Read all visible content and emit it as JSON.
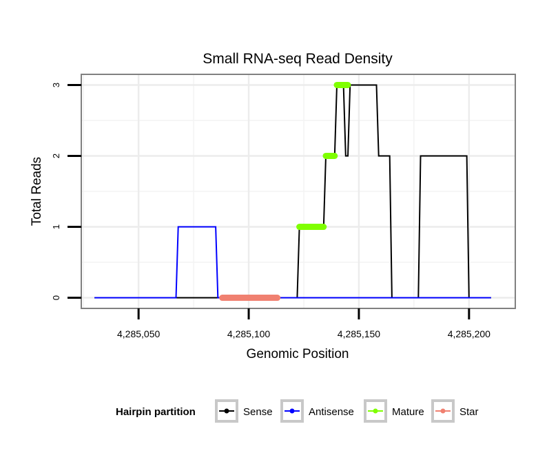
{
  "chart_data": {
    "type": "line",
    "title": "Small RNA-seq Read Density",
    "xlabel": "Genomic Position",
    "ylabel": "Total Reads",
    "xlim": [
      4285024,
      4285221
    ],
    "ylim": [
      -0.15,
      3.15
    ],
    "x_ticks": [
      4285050,
      4285100,
      4285150,
      4285200
    ],
    "x_tick_labels": [
      "4,285,050",
      "4,285,100",
      "4,285,150",
      "4,285,200"
    ],
    "y_ticks": [
      0,
      1,
      2,
      3
    ],
    "y_tick_labels": [
      "0",
      "1",
      "2",
      "3"
    ],
    "grid": true,
    "legend": {
      "title": "Hairpin partition",
      "position": "bottom",
      "entries": [
        "Sense",
        "Antisense",
        "Mature",
        "Star"
      ]
    },
    "series": [
      {
        "name": "Sense",
        "color": "#000000",
        "style": "line",
        "x": [
          4285030,
          4285122,
          4285123,
          4285134,
          4285135,
          4285139,
          4285140,
          4285143,
          4285144,
          4285145,
          4285146,
          4285158,
          4285159,
          4285164,
          4285165,
          4285177,
          4285178,
          4285199,
          4285200,
          4285210
        ],
        "y": [
          0,
          0,
          1,
          1,
          2,
          2,
          3,
          3,
          2,
          2,
          3,
          3,
          2,
          2,
          0,
          0,
          2,
          2,
          0,
          0
        ]
      },
      {
        "name": "Antisense",
        "color": "#0000ff",
        "style": "line",
        "x": [
          4285030,
          4285067,
          4285068,
          4285085,
          4285086,
          4285210
        ],
        "y": [
          0,
          0,
          1,
          1,
          0,
          0
        ]
      },
      {
        "name": "Mature",
        "color": "#7fff00",
        "style": "thick",
        "segments": [
          {
            "x": [
              4285123,
              4285134
            ],
            "y": 1
          },
          {
            "x": [
              4285135,
              4285139
            ],
            "y": 2
          },
          {
            "x": [
              4285140,
              4285145
            ],
            "y": 3
          }
        ]
      },
      {
        "name": "Star",
        "color": "#f08070",
        "style": "thick",
        "segments": [
          {
            "x": [
              4285088,
              4285113
            ],
            "y": 0
          }
        ]
      }
    ]
  }
}
